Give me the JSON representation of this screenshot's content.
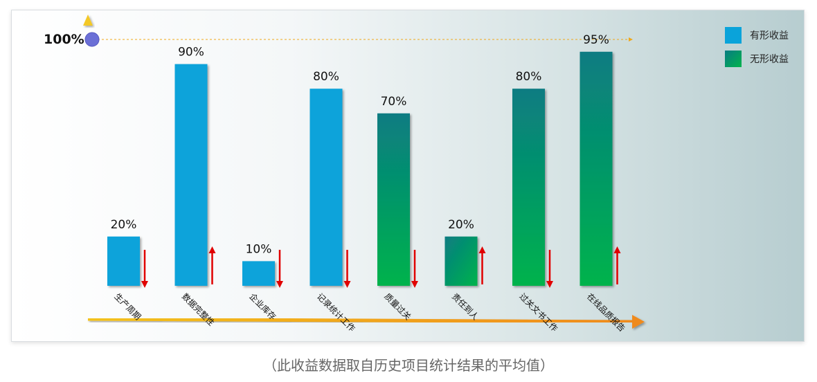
{
  "caption": "（此收益数据取自历史项目统计结果的平均值）",
  "legend": [
    {
      "label": "有形收益",
      "color": "#0aa3da"
    },
    {
      "label": "无形收益",
      "color": "#0c9a70"
    }
  ],
  "colors": {
    "tangible": "#0aa3da",
    "intangible_top": "#087c82",
    "intangible_bottom": "#02b34c",
    "axis": "#f0a81a",
    "arrow": "#e00000",
    "marker": "#6b6fd6"
  },
  "chart_data": {
    "type": "bar",
    "y_max_label": "100%",
    "ylim": [
      0,
      100
    ],
    "categories": [
      "生产周期",
      "数据完整性",
      "企业库存",
      "记录统计工作",
      "质量过关",
      "责任到人",
      "过关文书工作",
      "在线品质报告"
    ],
    "values": [
      20,
      90,
      10,
      80,
      70,
      20,
      80,
      95
    ],
    "value_labels": [
      "20%",
      "90%",
      "10%",
      "80%",
      "70%",
      "20%",
      "80%",
      "95%"
    ],
    "kinds": [
      "有形收益",
      "有形收益",
      "有形收益",
      "有形收益",
      "无形收益",
      "无形收益",
      "无形收益",
      "无形收益"
    ],
    "trend": [
      "down",
      "up",
      "down",
      "down",
      "down",
      "up",
      "down",
      "up"
    ]
  }
}
